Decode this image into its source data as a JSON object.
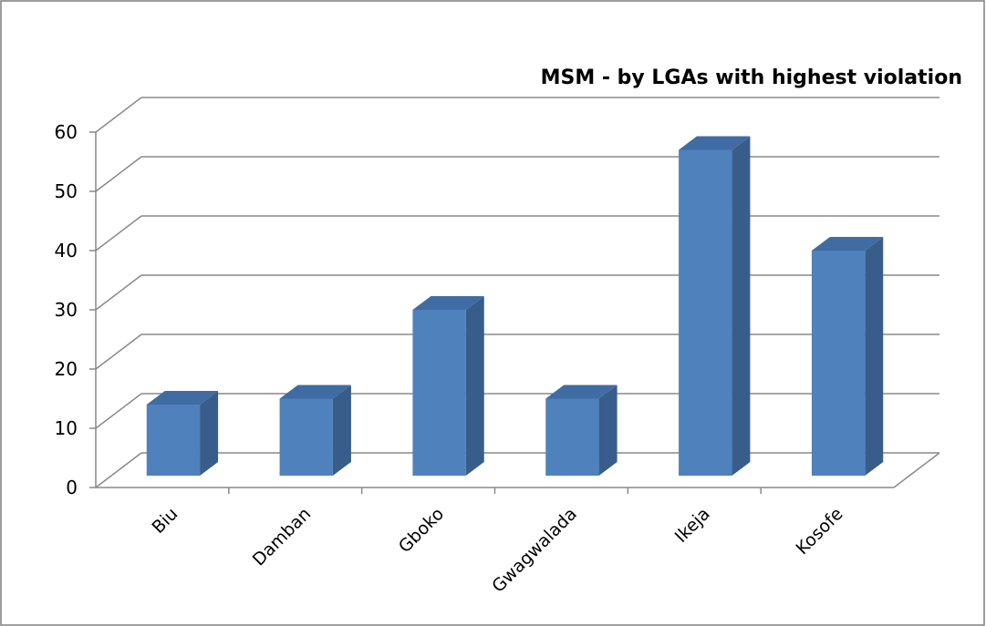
{
  "chart_data": {
    "type": "bar",
    "title": "MSM - by LGAs with highest violation",
    "categories": [
      "Biu",
      "Damban",
      "Gboko",
      "Gwagwalada",
      "Ikeja",
      "Kosofe"
    ],
    "values": [
      12,
      13,
      28,
      13,
      55,
      38
    ],
    "ylim": [
      0,
      60
    ],
    "yticks": [
      0,
      10,
      20,
      30,
      40,
      50,
      60
    ],
    "grid": true,
    "legend": "none",
    "style": "3d-column"
  },
  "colors": {
    "bar_front": "#4f81bd",
    "bar_side": "#385d8a",
    "bar_top": "#3f6ca3",
    "grid": "#898989",
    "frame": "#7f7f7f"
  }
}
